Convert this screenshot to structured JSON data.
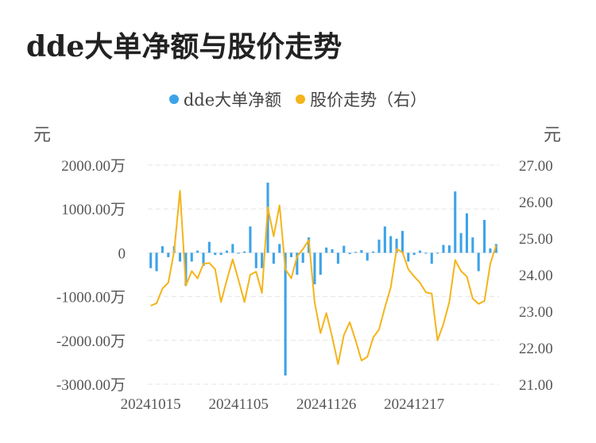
{
  "page": {
    "title": "dde大单净额与股价走势"
  },
  "colors": {
    "bar": "#3da3e8",
    "line": "#f4b41b",
    "grid": "#e6e6e6",
    "text": "#555555"
  },
  "chart_data": {
    "type": "bar",
    "title": "dde大单净额与股价走势",
    "legend": [
      {
        "name": "dde大单净额",
        "color": "#3da3e8"
      },
      {
        "name": "股价走势（右）",
        "color": "#f4b41b"
      }
    ],
    "y_left": {
      "unit": "元",
      "range": [
        -3000,
        2000
      ],
      "ticks": [
        -3000,
        -2000,
        -1000,
        0,
        1000,
        2000
      ],
      "tick_labels": [
        "-3000.00万",
        "-2000.00万",
        "-1000.00万",
        "0",
        "1000.00万",
        "2000.00万"
      ]
    },
    "y_right": {
      "unit": "元",
      "range": [
        21.0,
        27.0
      ],
      "ticks": [
        21,
        22,
        23,
        24,
        25,
        26,
        27
      ],
      "tick_labels": [
        "21.00",
        "22.00",
        "23.00",
        "24.00",
        "25.00",
        "26.00",
        "27.00"
      ]
    },
    "x_ticks": [
      {
        "index": 0,
        "label": "20241015"
      },
      {
        "index": 15,
        "label": "20241105"
      },
      {
        "index": 30,
        "label": "20241126"
      },
      {
        "index": 45,
        "label": "20241217"
      }
    ],
    "series": [
      {
        "name": "dde大单净额",
        "type": "bar",
        "axis": "left",
        "values": [
          -350,
          -420,
          150,
          -100,
          150,
          -200,
          -750,
          -200,
          50,
          -300,
          250,
          -50,
          -50,
          50,
          200,
          -20,
          30,
          600,
          -350,
          -350,
          1600,
          -250,
          200,
          -2800,
          -100,
          -500,
          -230,
          350,
          -720,
          -500,
          120,
          80,
          -250,
          160,
          -30,
          20,
          60,
          -180,
          30,
          300,
          600,
          380,
          320,
          500,
          -200,
          -50,
          50,
          -20,
          -250,
          -20,
          180,
          170,
          1400,
          450,
          900,
          350,
          -420,
          750,
          100,
          200
        ],
        "unit": "万"
      },
      {
        "name": "股价走势（右）",
        "type": "line",
        "axis": "right",
        "values": [
          23.15,
          23.22,
          23.62,
          23.78,
          24.65,
          26.3,
          23.7,
          24.1,
          23.9,
          24.3,
          24.32,
          24.15,
          23.25,
          23.85,
          24.42,
          23.85,
          23.25,
          24.0,
          24.08,
          23.5,
          25.85,
          25.05,
          25.9,
          24.15,
          23.9,
          24.5,
          24.7,
          24.95,
          23.25,
          22.4,
          22.95,
          22.3,
          21.55,
          22.35,
          22.7,
          22.2,
          21.65,
          21.75,
          22.28,
          22.5,
          23.1,
          23.65,
          24.7,
          24.62,
          24.15,
          23.95,
          23.78,
          23.52,
          23.48,
          22.2,
          22.65,
          23.25,
          24.4,
          24.1,
          23.95,
          23.35,
          23.2,
          23.28,
          24.3,
          24.8
        ],
        "unit": "元"
      }
    ]
  }
}
